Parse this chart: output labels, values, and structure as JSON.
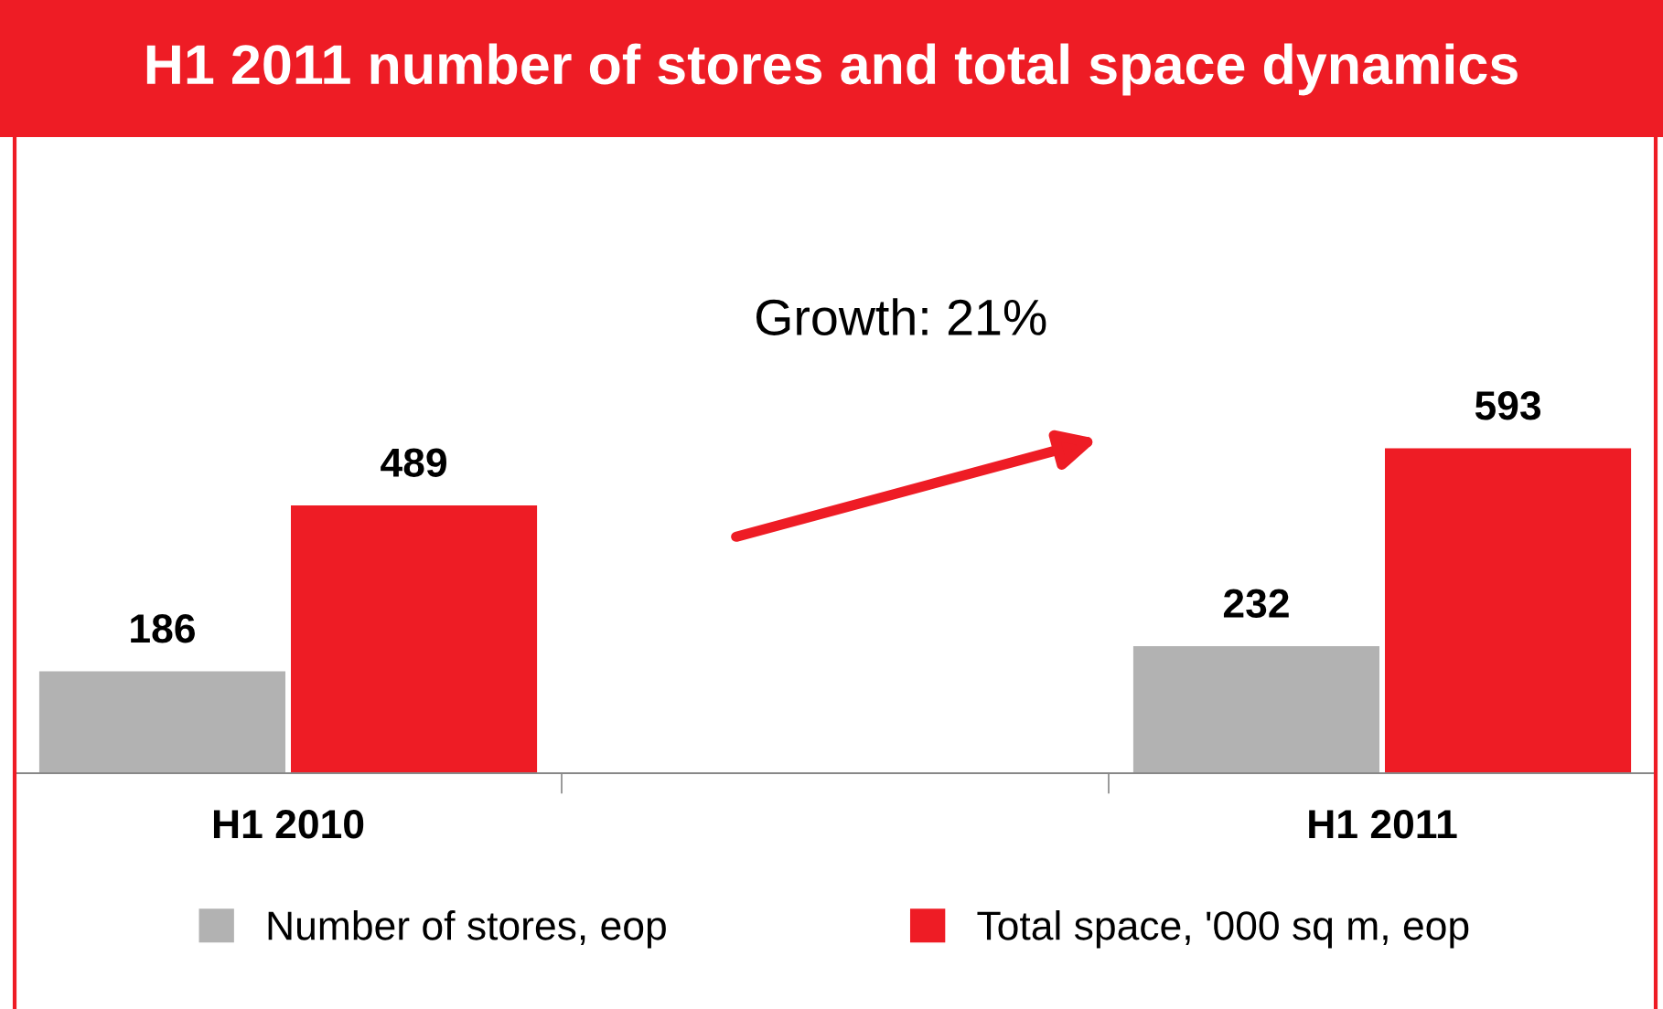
{
  "chart_data": {
    "type": "bar",
    "title": "H1 2011 number of stores and total space dynamics",
    "categories": [
      "H1 2010",
      null,
      "H1 2011"
    ],
    "series": [
      {
        "name": "Number of stores, eop",
        "color": "#b2b2b2",
        "values": [
          186,
          null,
          232
        ]
      },
      {
        "name": "Total space, '000 sq m, eop",
        "color": "#ee1c25",
        "values": [
          489,
          null,
          593
        ]
      }
    ],
    "data_labels": true,
    "legend": "bottom",
    "grid": false,
    "tick_labels": "x",
    "annotations": [
      "Growth: 21%"
    ]
  }
}
